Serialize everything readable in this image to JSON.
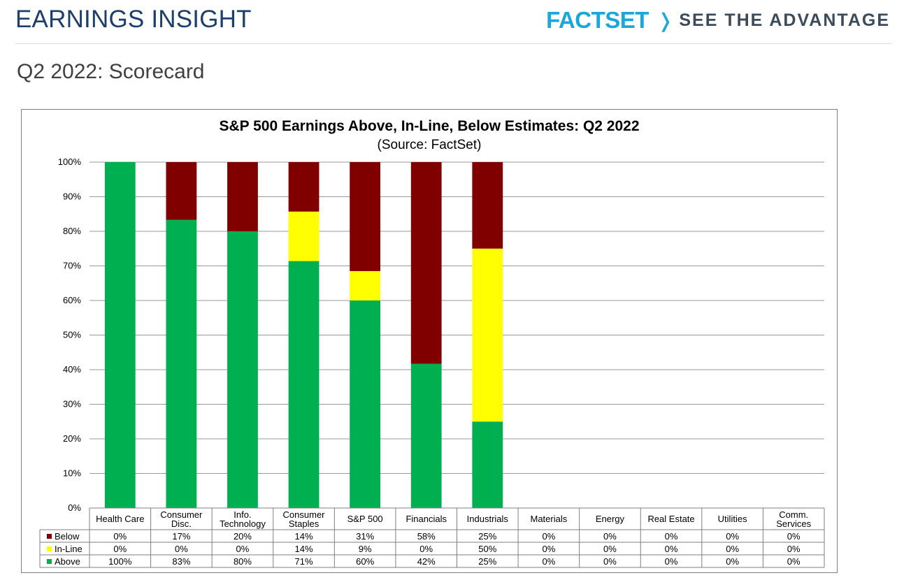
{
  "header": {
    "title": "EARNINGS INSIGHT",
    "brand_name": "FACTSET",
    "brand_chevron": "❭",
    "brand_tagline": "SEE THE ADVANTAGE"
  },
  "page": {
    "subtitle": "Q2 2022: Scorecard"
  },
  "chart_data": {
    "type": "bar",
    "stacked": true,
    "title": "S&P 500 Earnings Above, In-Line, Below Estimates: Q2 2022",
    "subtitle": "(Source: FactSet)",
    "ylim": [
      0,
      100
    ],
    "yticks": [
      "0%",
      "10%",
      "20%",
      "30%",
      "40%",
      "50%",
      "60%",
      "70%",
      "80%",
      "90%",
      "100%"
    ],
    "categories": [
      [
        "Health Care"
      ],
      [
        "Consumer",
        "Disc."
      ],
      [
        "Info.",
        "Technology"
      ],
      [
        "Consumer",
        "Staples"
      ],
      [
        "S&P 500"
      ],
      [
        "Financials"
      ],
      [
        "Industrials"
      ],
      [
        "Materials"
      ],
      [
        "Energy"
      ],
      [
        "Real Estate"
      ],
      [
        "Utilities"
      ],
      [
        "Comm.",
        "Services"
      ]
    ],
    "series": [
      {
        "name": "Below",
        "color": "#800000",
        "values": [
          0,
          17,
          20,
          14,
          31,
          58,
          25,
          0,
          0,
          0,
          0,
          0
        ]
      },
      {
        "name": "In-Line",
        "color": "#ffff00",
        "values": [
          0,
          0,
          0,
          14,
          9,
          0,
          50,
          0,
          0,
          0,
          0,
          0
        ]
      },
      {
        "name": "Above",
        "color": "#00b050",
        "values": [
          100,
          83,
          80,
          71,
          60,
          42,
          25,
          0,
          0,
          0,
          0,
          0
        ]
      }
    ],
    "table_labels": [
      [
        "0%",
        "17%",
        "20%",
        "14%",
        "31%",
        "58%",
        "25%",
        "0%",
        "0%",
        "0%",
        "0%",
        "0%"
      ],
      [
        "0%",
        "0%",
        "0%",
        "14%",
        "9%",
        "0%",
        "50%",
        "0%",
        "0%",
        "0%",
        "0%",
        "0%"
      ],
      [
        "100%",
        "83%",
        "80%",
        "71%",
        "60%",
        "42%",
        "25%",
        "0%",
        "0%",
        "0%",
        "0%",
        "0%"
      ]
    ],
    "bar_tops": {
      "Above": [
        100,
        83.3,
        80,
        71.4,
        60,
        41.7,
        25
      ],
      "In-Line": [
        null,
        null,
        null,
        85.7,
        68.5,
        null,
        75
      ]
    }
  }
}
